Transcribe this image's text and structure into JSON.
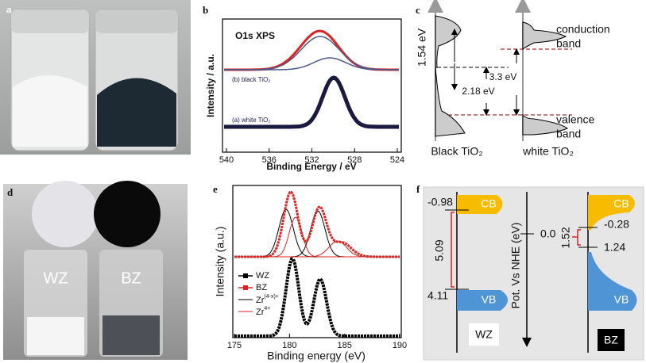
{
  "a": {
    "label": "a"
  },
  "b": {
    "label": "b",
    "title": "O1s XPS",
    "curve_upper": "(b) black TiO₂",
    "curve_lower": "(a) white TiO₂",
    "y_label": "Intensity / a.u.",
    "x_label": "Binding Energy / eV",
    "x_ticks": [
      540,
      536,
      532,
      528,
      524
    ]
  },
  "c": {
    "label": "c",
    "gap_left": "1.54 eV",
    "gap_mid": "2.18 eV",
    "gap_right": "3.3 eV",
    "cb": [
      "conduction",
      "band"
    ],
    "vb": [
      "valence",
      "band"
    ],
    "black": "Black TiO₂",
    "white": "white TiO₂"
  },
  "d": {
    "label": "d",
    "left": "WZ",
    "right": "BZ"
  },
  "e": {
    "label": "e",
    "y_label": "Intensity (a.u.)",
    "x_label": "Binding energy (eV)",
    "x_ticks": [
      175,
      180,
      185,
      190
    ],
    "legend": {
      "wz": "WZ",
      "bz": "BZ",
      "zr_a": "Zr",
      "zr_a_sup": "(4-x)+",
      "zr_b": "Zr",
      "zr_b_sup": "4+"
    }
  },
  "f": {
    "label": "f",
    "wz_cb": "CB",
    "wz_cb_level": -0.98,
    "wz_gap": "5.09",
    "wz_vb_level": "4.11",
    "wz_vb": "VB",
    "wz": "WZ",
    "axis": "Pot. Vs NHE (eV)",
    "zero": "0.0",
    "bz_cb": "CB",
    "bz_cb_level": -0.28,
    "bz_gap": "1.52",
    "bz_vb_level": "1.24",
    "bz_vb": "VB",
    "bz": "BZ"
  }
}
